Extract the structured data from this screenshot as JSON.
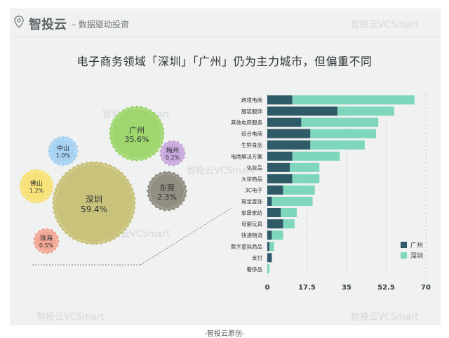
{
  "header": {
    "brand": "智投云",
    "slogan": "– 数据驱动投资"
  },
  "watermark": "智投云VCSmart",
  "title": "电子商务领域「深圳」「广州」仍为主力城市，但偏重不同",
  "footer": "-智投云原创-",
  "colors": {
    "guangzhou": "#2f5a68",
    "shenzhen": "#7ed6bc",
    "card_bg": "#f0f1f1"
  },
  "chart_data": [
    {
      "type": "bubble",
      "bubbles": [
        {
          "city": "深圳",
          "value": "59.4%",
          "share": 59.4,
          "color": "#c9c27a"
        },
        {
          "city": "广州",
          "value": "35.6%",
          "share": 35.6,
          "color": "#9fd66e"
        },
        {
          "city": "东莞",
          "value": "2.3%",
          "share": 2.3,
          "color": "#928f82"
        },
        {
          "city": "中山",
          "value": "1.0%",
          "share": 1.0,
          "color": "#a7d2f2"
        },
        {
          "city": "佛山",
          "value": "1.2%",
          "share": 1.2,
          "color": "#f7e27a"
        },
        {
          "city": "梅州",
          "value": "0.2%",
          "share": 0.2,
          "color": "#c8a8dc"
        },
        {
          "city": "珠海",
          "value": "0.5%",
          "share": 0.5,
          "color": "#f2a694"
        }
      ]
    },
    {
      "type": "bar",
      "orientation": "horizontal",
      "stacked": true,
      "categories": [
        "跨境电商",
        "服装服饰",
        "其他电商服务",
        "综合电商",
        "生鲜食品",
        "电商解决方案",
        "化妆品",
        "大宗商品",
        "3C电子",
        "珠宝首饰",
        "家居家纺",
        "母婴玩具",
        "快递物流",
        "数字虚拟商品",
        "支付",
        "奢侈品"
      ],
      "series": [
        {
          "name": "广州",
          "values": [
            11,
            31,
            15,
            19,
            19,
            11,
            10,
            11,
            7,
            2,
            6,
            7,
            2,
            1,
            2,
            0
          ]
        },
        {
          "name": "深圳",
          "values": [
            54,
            25,
            34,
            29,
            24,
            21,
            13,
            12,
            14,
            18,
            7,
            5,
            5,
            2,
            0,
            1
          ]
        }
      ],
      "xticks": [
        "0",
        "17.5",
        "35",
        "52.5",
        "70"
      ],
      "xlim": [
        0,
        70
      ],
      "grid": true,
      "legend": "bottom-right"
    }
  ]
}
